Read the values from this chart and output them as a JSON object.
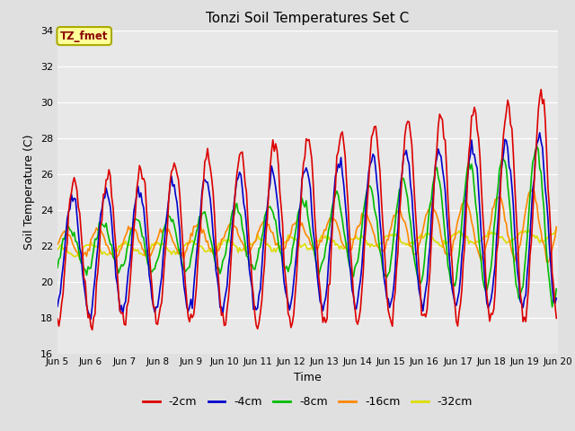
{
  "title": "Tonzi Soil Temperatures Set C",
  "xlabel": "Time",
  "ylabel": "Soil Temperature (C)",
  "ylim": [
    16,
    34
  ],
  "yticks": [
    16,
    18,
    20,
    22,
    24,
    26,
    28,
    30,
    32,
    34
  ],
  "xlim_days": [
    5,
    20
  ],
  "xtick_labels": [
    "Jun 5",
    "Jun 6",
    "Jun 7",
    "Jun 8",
    "Jun 9",
    "Jun 10",
    "Jun 11",
    "Jun 12",
    "Jun 13",
    "Jun 14",
    "Jun 15",
    "Jun 16",
    "Jun 17",
    "Jun 18",
    "Jun 19",
    "Jun 20"
  ],
  "annotation_text": "TZ_fmet",
  "annotation_color": "#8B0000",
  "annotation_bg": "#FFFF99",
  "annotation_edge": "#AAAA00",
  "line_colors": {
    "-2cm": "#DD0000",
    "-4cm": "#0000CC",
    "-8cm": "#00BB00",
    "-16cm": "#FF8800",
    "-32cm": "#DDDD00"
  },
  "bg_color": "#E0E0E0",
  "plot_bg": "#E8E8E8",
  "grid_color": "#FFFFFF",
  "legend_entries": [
    "-2cm",
    "-4cm",
    "-8cm",
    "-16cm",
    "-32cm"
  ]
}
